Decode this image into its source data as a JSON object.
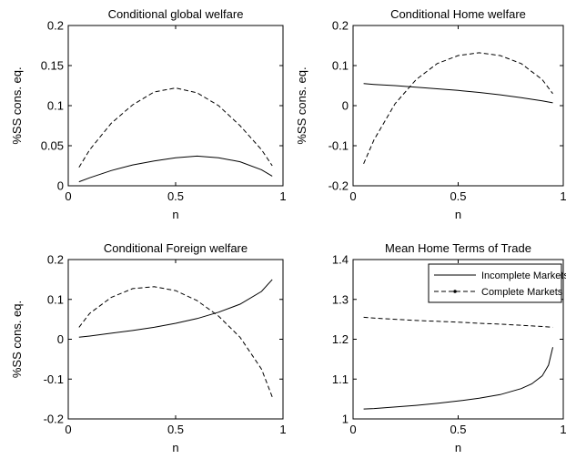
{
  "chart_data": [
    {
      "type": "line",
      "title": "Conditional global welfare",
      "xlabel": "n",
      "ylabel": "%SS cons. eq.",
      "xlim": [
        0,
        1
      ],
      "ylim": [
        0,
        0.2
      ],
      "xticks": [
        "0",
        "0.5",
        "1"
      ],
      "yticks": [
        "0",
        "0.05",
        "0.1",
        "0.15",
        "0.2"
      ],
      "grid": false,
      "series": [
        {
          "style": "solid",
          "x": [
            0.05,
            0.1,
            0.2,
            0.3,
            0.4,
            0.5,
            0.6,
            0.7,
            0.8,
            0.9,
            0.95
          ],
          "y": [
            0.005,
            0.01,
            0.019,
            0.026,
            0.031,
            0.035,
            0.037,
            0.035,
            0.03,
            0.02,
            0.012
          ]
        },
        {
          "style": "dashed",
          "x": [
            0.05,
            0.1,
            0.2,
            0.3,
            0.4,
            0.5,
            0.6,
            0.7,
            0.8,
            0.9,
            0.95
          ],
          "y": [
            0.023,
            0.045,
            0.078,
            0.101,
            0.117,
            0.122,
            0.116,
            0.1,
            0.075,
            0.045,
            0.025
          ]
        }
      ]
    },
    {
      "type": "line",
      "title": "Conditional Home welfare",
      "xlabel": "n",
      "ylabel": "%SS cons. eq.",
      "xlim": [
        0,
        1
      ],
      "ylim": [
        -0.2,
        0.2
      ],
      "xticks": [
        "0",
        "0.5",
        "1"
      ],
      "yticks": [
        "-0.2",
        "-0.1",
        "0",
        "0.1",
        "0.2"
      ],
      "grid": false,
      "series": [
        {
          "style": "solid",
          "x": [
            0.05,
            0.1,
            0.2,
            0.3,
            0.4,
            0.5,
            0.6,
            0.7,
            0.8,
            0.9,
            0.95
          ],
          "y": [
            0.055,
            0.053,
            0.05,
            0.046,
            0.042,
            0.038,
            0.033,
            0.027,
            0.02,
            0.012,
            0.007
          ]
        },
        {
          "style": "dashed",
          "x": [
            0.05,
            0.1,
            0.2,
            0.3,
            0.4,
            0.5,
            0.6,
            0.7,
            0.8,
            0.9,
            0.95
          ],
          "y": [
            -0.145,
            -0.085,
            0.005,
            0.065,
            0.105,
            0.125,
            0.132,
            0.125,
            0.105,
            0.065,
            0.03
          ]
        }
      ]
    },
    {
      "type": "line",
      "title": "Conditional Foreign welfare",
      "xlabel": "n",
      "ylabel": "%SS cons. eq.",
      "xlim": [
        0,
        1
      ],
      "ylim": [
        -0.2,
        0.2
      ],
      "xticks": [
        "0",
        "0.5",
        "1"
      ],
      "yticks": [
        "-0.2",
        "-0.1",
        "0",
        "0.1",
        "0.2"
      ],
      "grid": false,
      "series": [
        {
          "style": "solid",
          "x": [
            0.05,
            0.1,
            0.2,
            0.3,
            0.4,
            0.5,
            0.6,
            0.7,
            0.8,
            0.9,
            0.95
          ],
          "y": [
            0.005,
            0.008,
            0.015,
            0.022,
            0.03,
            0.04,
            0.052,
            0.068,
            0.088,
            0.12,
            0.15
          ]
        },
        {
          "style": "dashed",
          "x": [
            0.05,
            0.1,
            0.2,
            0.3,
            0.4,
            0.5,
            0.6,
            0.7,
            0.8,
            0.9,
            0.95
          ],
          "y": [
            0.03,
            0.065,
            0.105,
            0.127,
            0.132,
            0.122,
            0.097,
            0.058,
            0.005,
            -0.075,
            -0.145
          ]
        }
      ]
    },
    {
      "type": "line",
      "title": "Mean Home Terms of Trade",
      "xlabel": "n",
      "ylabel": "",
      "xlim": [
        0,
        1
      ],
      "ylim": [
        1,
        1.4
      ],
      "xticks": [
        "0",
        "0.5",
        "1"
      ],
      "yticks": [
        "1",
        "1.1",
        "1.2",
        "1.3",
        "1.4"
      ],
      "grid": false,
      "legend": "top-right",
      "series": [
        {
          "name": "Incomplete Markets",
          "style": "solid",
          "x": [
            0.05,
            0.1,
            0.2,
            0.3,
            0.4,
            0.5,
            0.6,
            0.7,
            0.8,
            0.85,
            0.9,
            0.93,
            0.95
          ],
          "y": [
            1.025,
            1.026,
            1.03,
            1.034,
            1.039,
            1.045,
            1.052,
            1.061,
            1.076,
            1.088,
            1.108,
            1.135,
            1.18
          ]
        },
        {
          "name": "Complete Markets",
          "style": "dashed",
          "x": [
            0.05,
            0.1,
            0.2,
            0.3,
            0.4,
            0.5,
            0.6,
            0.7,
            0.8,
            0.9,
            0.95
          ],
          "y": [
            1.255,
            1.253,
            1.25,
            1.247,
            1.245,
            1.243,
            1.24,
            1.238,
            1.235,
            1.232,
            1.23
          ]
        }
      ]
    }
  ]
}
